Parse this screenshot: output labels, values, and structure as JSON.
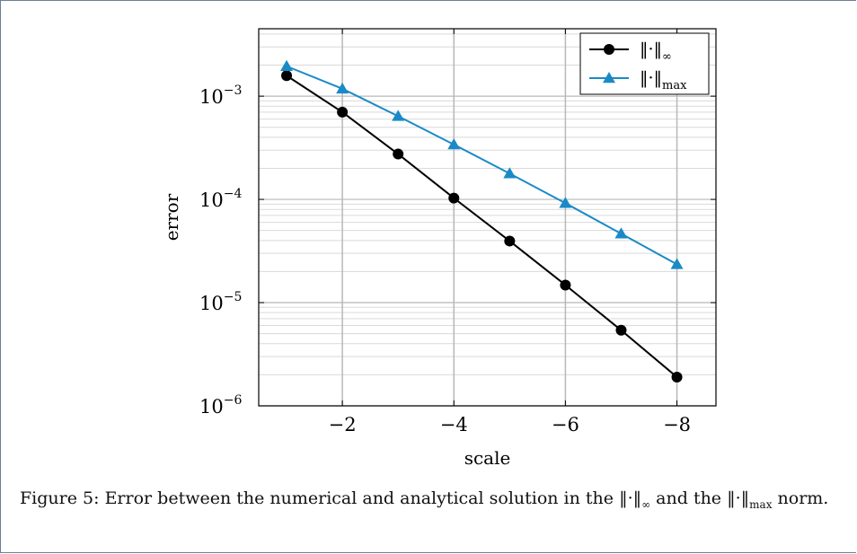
{
  "chart_data": {
    "type": "line",
    "x": [
      -1,
      -2,
      -3,
      -4,
      -5,
      -6,
      -7,
      -8
    ],
    "xlabel": "scale",
    "ylabel": "error",
    "xlim": [
      -0.5,
      -8.7
    ],
    "ylim": [
      1e-06,
      0.0045
    ],
    "xticks": [
      -2,
      -4,
      -6,
      -8
    ],
    "xtick_labels": [
      "−2",
      "−4",
      "−6",
      "−8"
    ],
    "yscale": "log",
    "yticks": [
      {
        "value": 0.001,
        "base": "10",
        "exp": "−3"
      },
      {
        "value": 0.0001,
        "base": "10",
        "exp": "−4"
      },
      {
        "value": 1e-05,
        "base": "10",
        "exp": "−5"
      },
      {
        "value": 1e-06,
        "base": "10",
        "exp": "−6"
      }
    ],
    "grid": true,
    "legend_position": "top-right",
    "series": [
      {
        "name": "‖·‖",
        "subscript": "∞",
        "color": "#000000",
        "marker": "circle",
        "values": [
          0.00158,
          0.0007,
          0.000275,
          0.000103,
          3.95e-05,
          1.48e-05,
          5.4e-06,
          1.9e-06
        ]
      },
      {
        "name": "‖·‖",
        "subscript": "max",
        "color": "#1a8ac6",
        "marker": "triangle",
        "values": [
          0.00195,
          0.00118,
          0.00064,
          0.00034,
          0.000178,
          9.2e-05,
          4.65e-05,
          2.35e-05
        ]
      }
    ]
  },
  "caption": {
    "label": "Figure 5:",
    "text_before": "Error between the numerical and analytical solution in the",
    "norm_symbol": "‖·‖",
    "inf_sub": "∞",
    "text_middle": "and the",
    "max_sub": "max",
    "text_after": "norm."
  }
}
